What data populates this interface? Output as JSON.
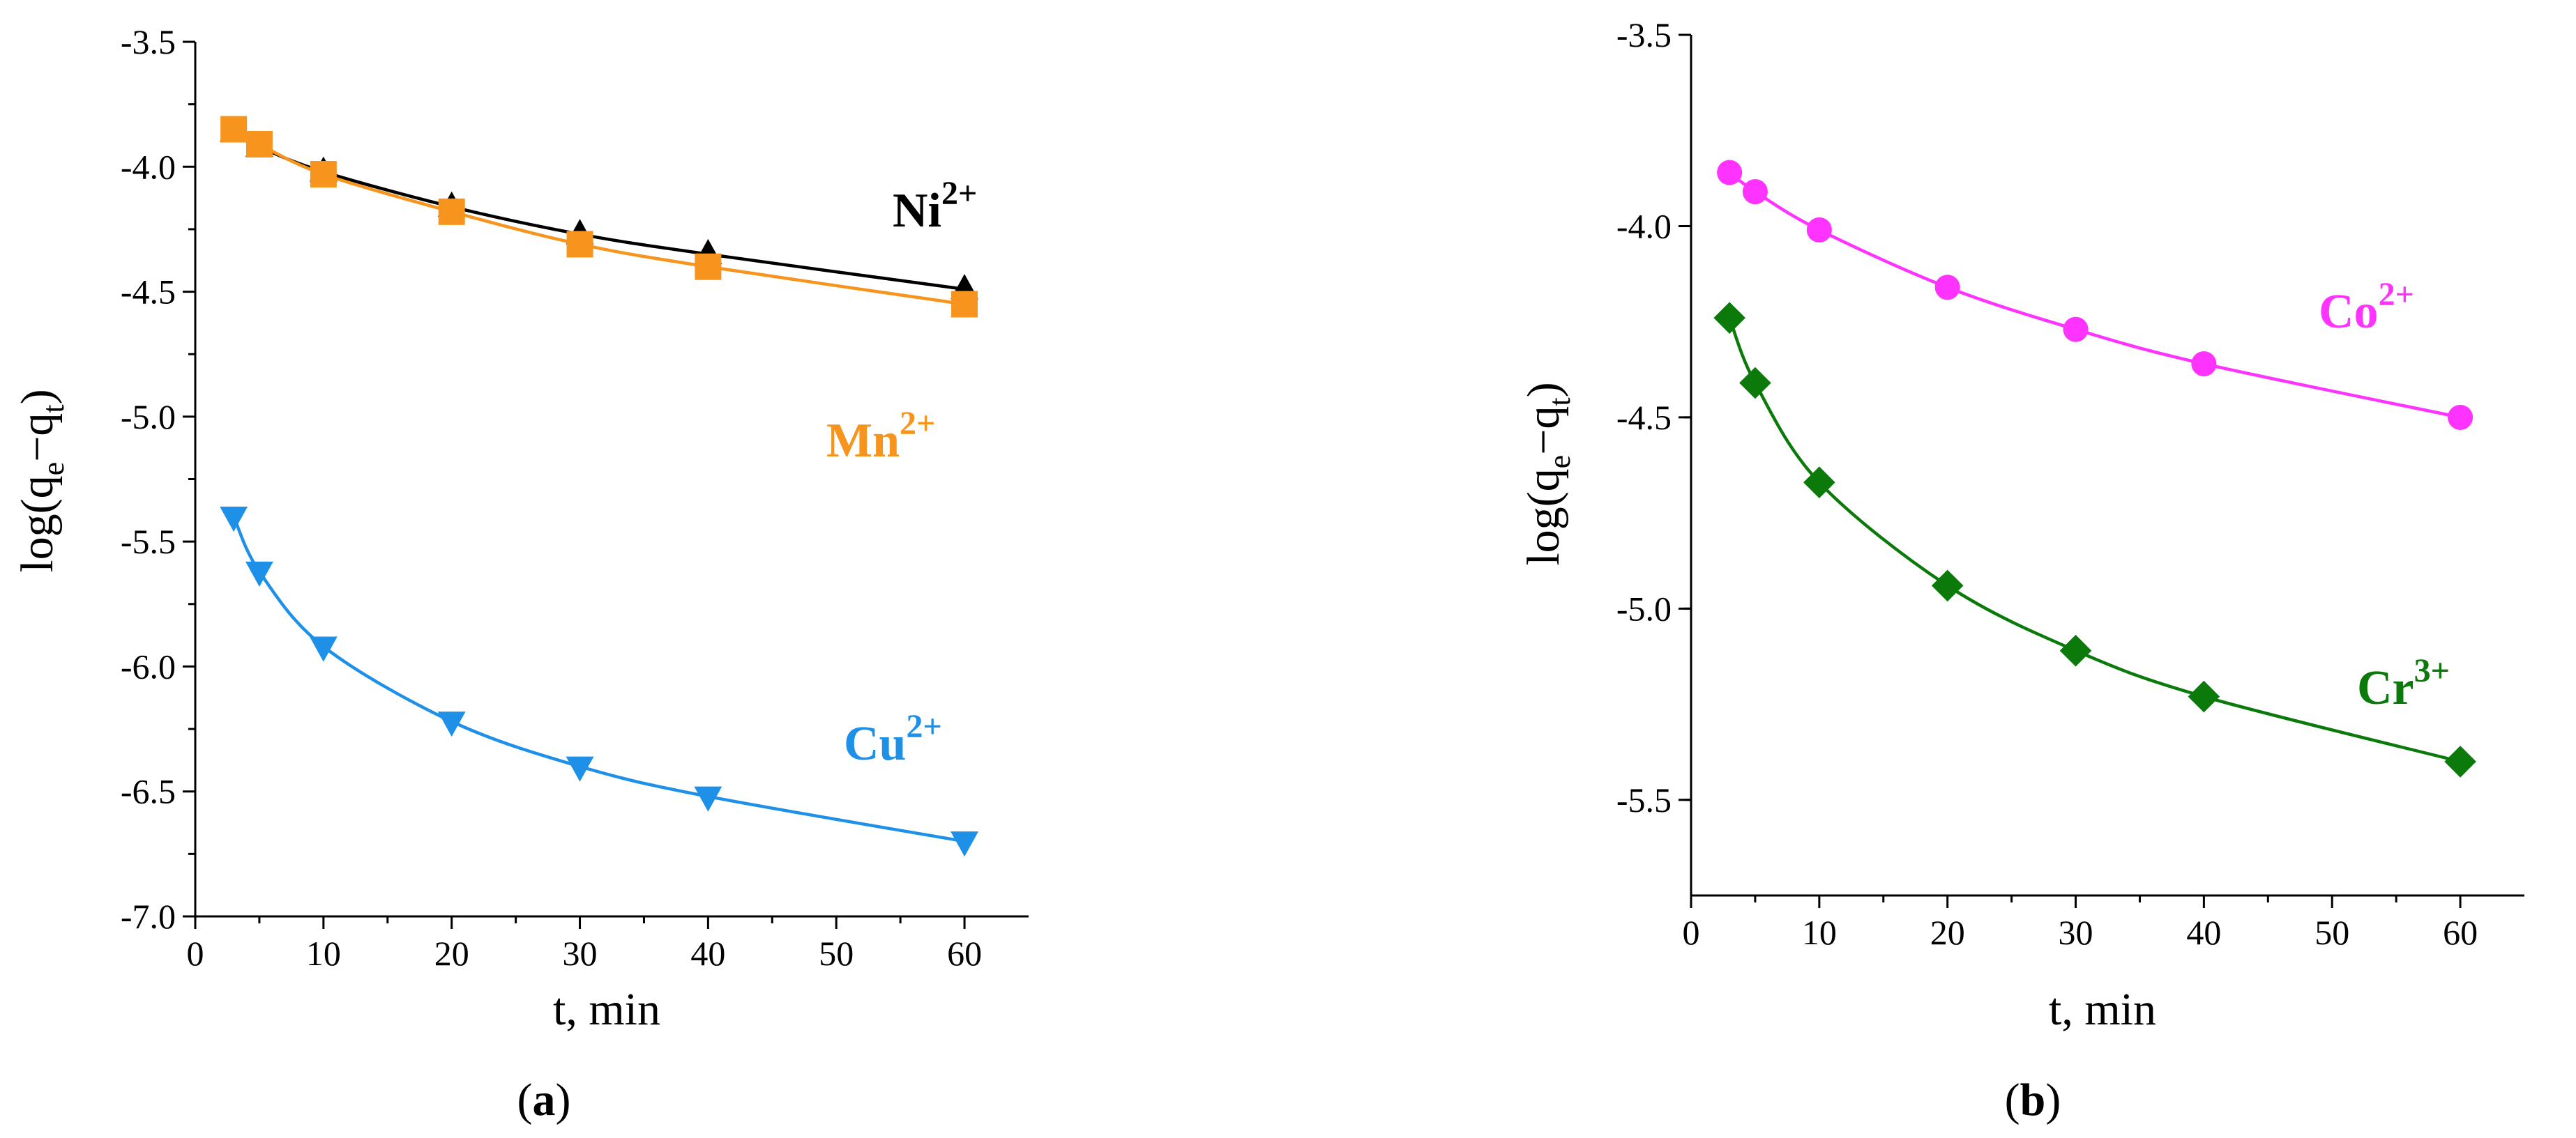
{
  "chart_data": [
    {
      "type": "line",
      "panel_label": "a",
      "xlabel": "t, min",
      "ylabel": "log(qe−qt)",
      "ylabel_parts": [
        "log(q",
        "e",
        "−q",
        "t",
        ")"
      ],
      "xlim": [
        0,
        65
      ],
      "ylim": [
        -7.0,
        -3.5
      ],
      "xticks": [
        0,
        10,
        20,
        30,
        40,
        50,
        60
      ],
      "yticks": [
        -3.5,
        -4.0,
        -4.5,
        -5.0,
        -5.5,
        -6.0,
        -6.5,
        -7.0
      ],
      "ytick_labels": [
        "-3.5",
        "-4.0",
        "-4.5",
        "-5.0",
        "-5.5",
        "-6.0",
        "-6.5",
        "-7.0"
      ],
      "series": [
        {
          "name": "Ni2+",
          "label": "Ni",
          "charge": "2+",
          "color": "#000000",
          "marker": "triangle-up",
          "x": [
            3,
            5,
            10,
            20,
            30,
            40,
            60
          ],
          "y": [
            -3.86,
            -3.92,
            -4.02,
            -4.16,
            -4.27,
            -4.35,
            -4.49
          ]
        },
        {
          "name": "Mn2+",
          "label": "Mn",
          "charge": "2+",
          "color": "#F7941D",
          "marker": "square",
          "x": [
            3,
            5,
            10,
            20,
            30,
            40,
            60
          ],
          "y": [
            -3.85,
            -3.91,
            -4.03,
            -4.18,
            -4.31,
            -4.4,
            -4.55
          ]
        },
        {
          "name": "Cu2+",
          "label": "Cu",
          "charge": "2+",
          "color": "#1E90E8",
          "marker": "triangle-down",
          "x": [
            3,
            5,
            10,
            20,
            30,
            40,
            60
          ],
          "y": [
            -5.4,
            -5.62,
            -5.92,
            -6.22,
            -6.4,
            -6.52,
            -6.7
          ]
        }
      ]
    },
    {
      "type": "line",
      "panel_label": "b",
      "xlabel": "t, min",
      "ylabel": "log(qe−qt)",
      "ylabel_parts": [
        "log(q",
        "e",
        "−q",
        "t",
        ")"
      ],
      "xlim": [
        0,
        65
      ],
      "ylim": [
        -5.75,
        -3.5
      ],
      "xticks": [
        0,
        10,
        20,
        30,
        40,
        50,
        60
      ],
      "yticks": [
        -3.5,
        -4.0,
        -4.5,
        -5.0,
        -5.5
      ],
      "ytick_labels": [
        "-3.5",
        "-4.0",
        "-4.5",
        "-5.0",
        "-5.5"
      ],
      "series": [
        {
          "name": "Co2+",
          "label": "Co",
          "charge": "2+",
          "color": "#FF33FF",
          "marker": "circle",
          "x": [
            3,
            5,
            10,
            20,
            30,
            40,
            60
          ],
          "y": [
            -3.86,
            -3.91,
            -4.01,
            -4.16,
            -4.27,
            -4.36,
            -4.5
          ]
        },
        {
          "name": "Cr3+",
          "label": "Cr",
          "charge": "3+",
          "color": "#0B7A0B",
          "marker": "diamond",
          "x": [
            3,
            5,
            10,
            20,
            30,
            40,
            60
          ],
          "y": [
            -4.24,
            -4.41,
            -4.67,
            -4.94,
            -5.11,
            -5.23,
            -5.4
          ]
        }
      ]
    }
  ]
}
